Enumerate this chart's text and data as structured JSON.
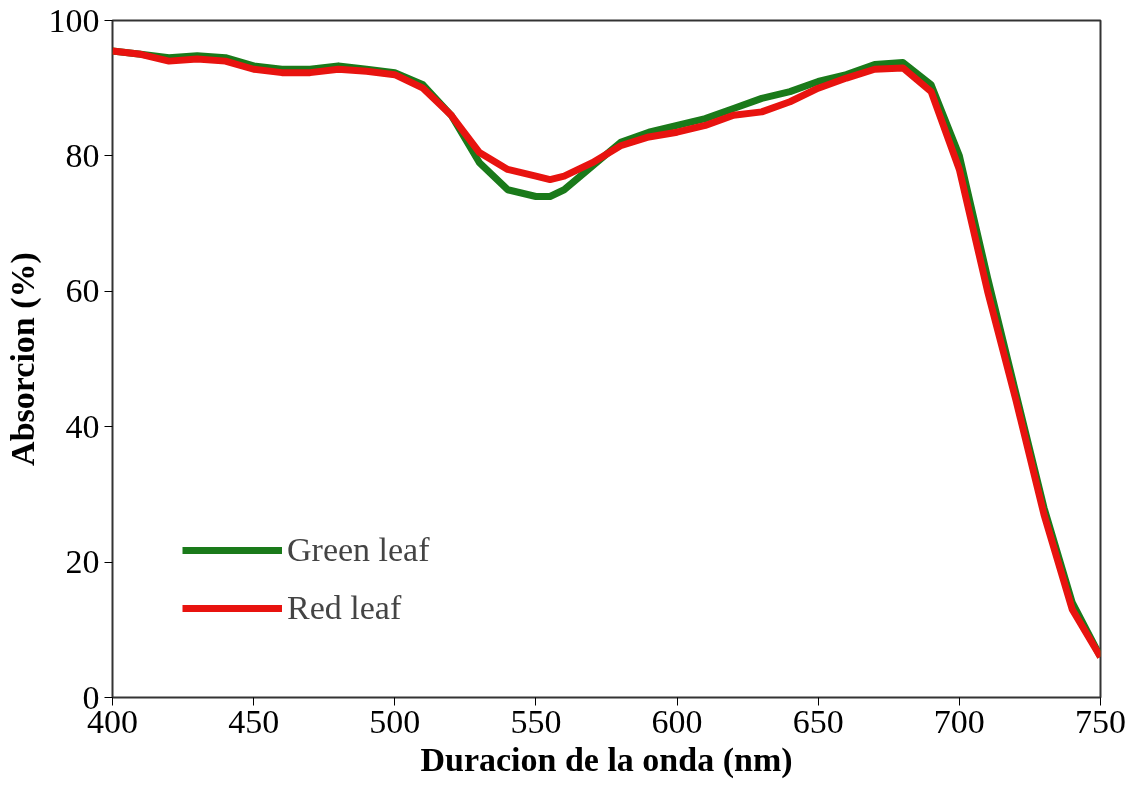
{
  "chart_data": {
    "type": "line",
    "xlabel": "Duracion de la onda (nm)",
    "ylabel": "Absorcion (%)",
    "xlim": [
      400,
      750
    ],
    "xticks": [
      400,
      450,
      500,
      550,
      600,
      650,
      700,
      750
    ],
    "ylim": [
      0,
      100
    ],
    "yticks": [
      0,
      20,
      40,
      60,
      80,
      100
    ],
    "grid": false,
    "legend": "bottom left",
    "line_style": "solid",
    "x": [
      400,
      410,
      420,
      430,
      440,
      450,
      460,
      470,
      480,
      490,
      500,
      510,
      520,
      530,
      540,
      550,
      555,
      560,
      570,
      580,
      590,
      600,
      610,
      620,
      630,
      640,
      650,
      660,
      670,
      680,
      690,
      700,
      710,
      720,
      730,
      740,
      750
    ],
    "series": [
      {
        "name": "Green leaf",
        "color": "#1a7a1a",
        "values": [
          95.5,
          95,
          94.5,
          94.8,
          94.5,
          93.3,
          92.8,
          92.8,
          93.3,
          92.8,
          92.3,
          90.5,
          86,
          79,
          75,
          74,
          74,
          75,
          78.5,
          82,
          83.5,
          84.5,
          85.5,
          87,
          88.5,
          89.5,
          91,
          92,
          93.5,
          93.8,
          90.5,
          80,
          62,
          45,
          28,
          14,
          6
        ]
      },
      {
        "name": "Red leaf",
        "color": "#e8130f",
        "values": [
          95.5,
          95,
          94,
          94.3,
          94,
          92.8,
          92.3,
          92.3,
          92.8,
          92.5,
          92,
          90,
          86,
          80.5,
          78,
          77,
          76.5,
          77,
          79,
          81.5,
          82.8,
          83.5,
          84.5,
          86,
          86.5,
          88,
          90,
          91.5,
          92.8,
          93,
          89.5,
          78,
          60,
          44,
          27,
          13,
          6
        ]
      }
    ]
  }
}
